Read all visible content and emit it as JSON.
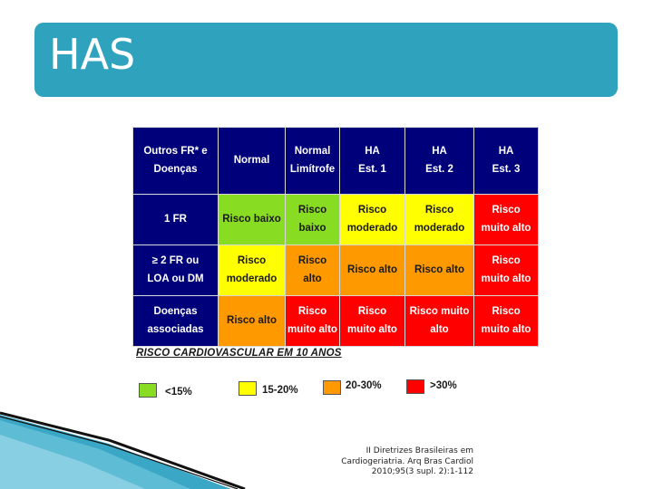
{
  "title": "HAS",
  "table": {
    "header": [
      [
        "Outros FR* e",
        "Doenças"
      ],
      [
        "Normal"
      ],
      [
        "Normal",
        "Limítrofe"
      ],
      [
        "HA",
        "Est. 1"
      ],
      [
        "HA",
        "Est. 2"
      ],
      [
        "HA",
        "Est. 3"
      ]
    ],
    "rows": [
      {
        "label": [
          "1 FR"
        ],
        "cells": [
          {
            "lines": [
              "Risco baixo"
            ],
            "level": 1
          },
          {
            "lines": [
              "Risco",
              "baixo"
            ],
            "level": 1
          },
          {
            "lines": [
              "Risco",
              "moderado"
            ],
            "level": 2
          },
          {
            "lines": [
              "Risco",
              "moderado"
            ],
            "level": 2
          },
          {
            "lines": [
              "Risco",
              "muito alto"
            ],
            "level": 4
          }
        ]
      },
      {
        "label": [
          "≥ 2 FR ou",
          "LOA ou DM"
        ],
        "cells": [
          {
            "lines": [
              "Risco",
              "moderado"
            ],
            "level": 2
          },
          {
            "lines": [
              "Risco",
              "alto"
            ],
            "level": 3
          },
          {
            "lines": [
              "Risco alto"
            ],
            "level": 3
          },
          {
            "lines": [
              "Risco alto"
            ],
            "level": 3
          },
          {
            "lines": [
              "Risco",
              "muito alto"
            ],
            "level": 4
          }
        ]
      },
      {
        "label": [
          "Doenças",
          "associadas"
        ],
        "cells": [
          {
            "lines": [
              "Risco alto"
            ],
            "level": 3
          },
          {
            "lines": [
              "Risco",
              "muito alto"
            ],
            "level": 4
          },
          {
            "lines": [
              "Risco",
              "muito alto"
            ],
            "level": 4
          },
          {
            "lines": [
              "Risco muito",
              "alto"
            ],
            "level": 4
          },
          {
            "lines": [
              "Risco",
              "muito alto"
            ],
            "level": 4
          }
        ]
      }
    ]
  },
  "section_label": "RISCO CARDIOVASCULAR EM 10 ANOS",
  "legend": [
    {
      "label": "<15%",
      "color": "#88dd22"
    },
    {
      "label": "15-20%",
      "color": "#ffff00"
    },
    {
      "label": "20-30%",
      "color": "#ff9900"
    },
    {
      "label": ">30%",
      "color": "#ff0000"
    }
  ],
  "citation": [
    "II Diretrizes Brasileiras em",
    "Cardiogeriatria. Arq Bras Cardiol",
    "2010;95(3 supl. 2):1-112"
  ],
  "colors": {
    "title_bar": "#2fa3bd",
    "header_bg": "#00007a"
  }
}
